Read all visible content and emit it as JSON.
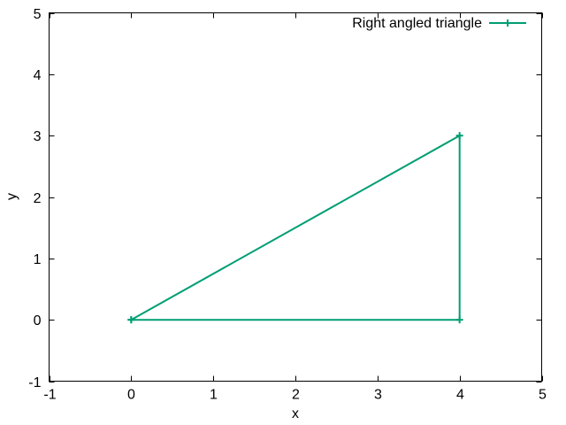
{
  "chart_data": {
    "type": "line",
    "title": "",
    "xlabel": "x",
    "ylabel": "y",
    "xlim": [
      -1,
      5
    ],
    "ylim": [
      -1,
      5
    ],
    "xticks": [
      -1,
      0,
      1,
      2,
      3,
      4,
      5
    ],
    "yticks": [
      -1,
      0,
      1,
      2,
      3,
      4,
      5
    ],
    "xtick_labels": [
      "-1",
      "0",
      "1",
      "2",
      "3",
      "4",
      "5"
    ],
    "ytick_labels": [
      "-1",
      "0",
      "1",
      "2",
      "3",
      "4",
      "5"
    ],
    "grid": false,
    "legend_position": "top-right",
    "series": [
      {
        "name": "Right angled triangle",
        "color": "#009e73",
        "marker": "plus",
        "x": [
          0,
          4,
          4,
          0
        ],
        "y": [
          0,
          0,
          3,
          0
        ]
      }
    ]
  }
}
